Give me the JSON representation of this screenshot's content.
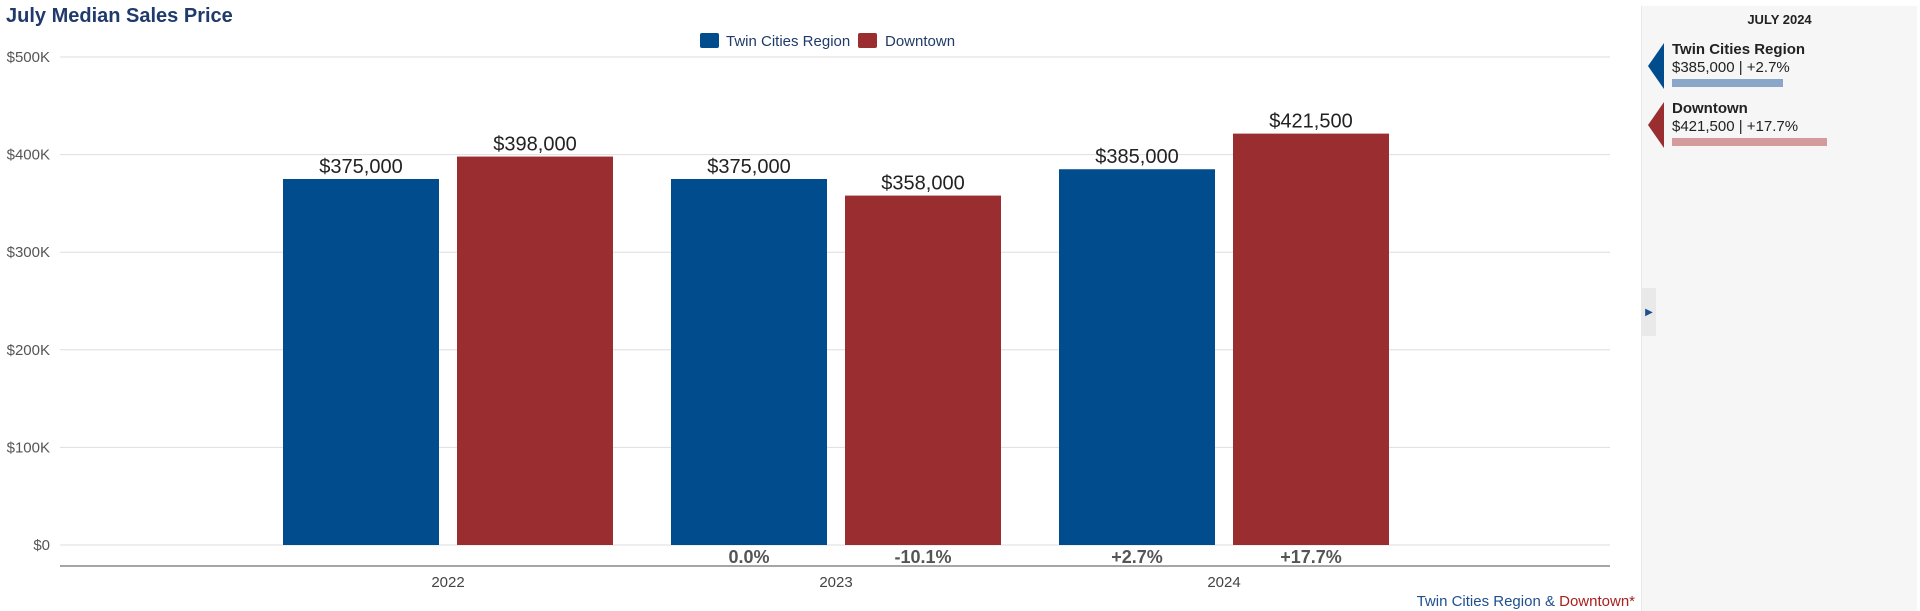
{
  "chart_data": {
    "type": "bar",
    "title": "July Median Sales Price",
    "categories": [
      "2022",
      "2023",
      "2024"
    ],
    "series": [
      {
        "name": "Twin Cities Region",
        "color": "#004c8c",
        "values": [
          375000,
          375000,
          385000
        ],
        "labels": [
          "$375,000",
          "$375,000",
          "$385,000"
        ],
        "change": [
          "",
          "0.0%",
          "+2.7%"
        ]
      },
      {
        "name": "Downtown",
        "color": "#9a2d2f",
        "values": [
          398000,
          358000,
          421500
        ],
        "labels": [
          "$398,000",
          "$358,000",
          "$421,500"
        ],
        "change": [
          "",
          "-10.1%",
          "+17.7%"
        ]
      }
    ],
    "ylim": [
      0,
      500000
    ],
    "yticks": [
      0,
      100000,
      200000,
      300000,
      400000,
      500000
    ],
    "ytick_labels": [
      "$0",
      "$100K",
      "$200K",
      "$300K",
      "$400K",
      "$500K"
    ],
    "xlabel": "",
    "ylabel": "",
    "grid": true,
    "legend_position": "top-center"
  },
  "footer": {
    "region": "Twin Cities Region",
    "amp": " & ",
    "area": "Downtown*"
  },
  "side_panel": {
    "title": "JULY 2024",
    "collapse_icon": "caret-right-icon",
    "entries": [
      {
        "name": "Twin Cities Region",
        "stat": "$385,000 | +2.7%",
        "color": "#004c8c",
        "bar_color": "#8aa6c8",
        "share": 0.517
      },
      {
        "name": "Downtown",
        "stat": "$421,500 | +17.7%",
        "color": "#9a2d2f",
        "bar_color": "#d59a9c",
        "share": 0.72
      }
    ]
  }
}
